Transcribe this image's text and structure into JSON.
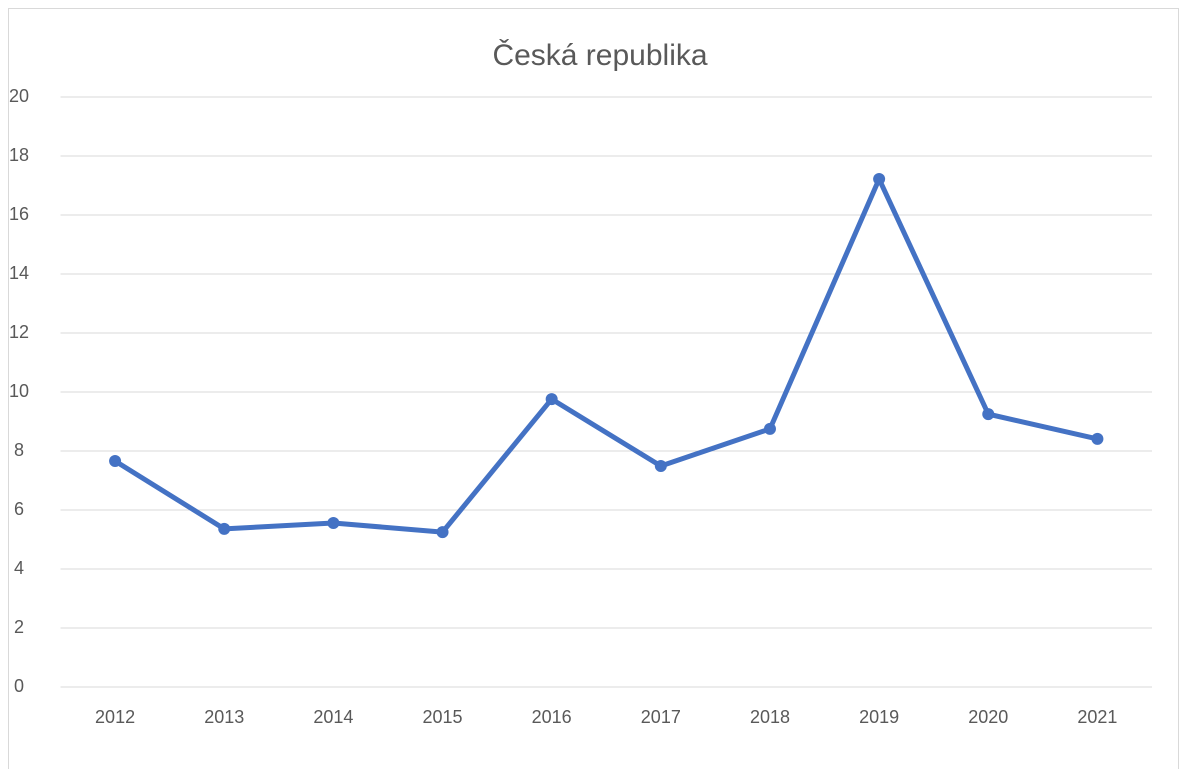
{
  "chart_data": {
    "type": "line",
    "title": "Česká republika",
    "categories": [
      "2012",
      "2013",
      "2014",
      "2015",
      "2016",
      "2017",
      "2018",
      "2019",
      "2020",
      "2021"
    ],
    "series": [
      {
        "color": "#4472c4",
        "values": [
          7.66,
          5.36,
          5.56,
          5.25,
          9.76,
          7.49,
          8.75,
          17.22,
          9.25,
          8.41
        ]
      }
    ],
    "ylim": [
      0,
      20
    ],
    "yticks": [
      0,
      2,
      4,
      6,
      8,
      10,
      12,
      14,
      16,
      18,
      20
    ],
    "grid": true,
    "markers": true
  }
}
